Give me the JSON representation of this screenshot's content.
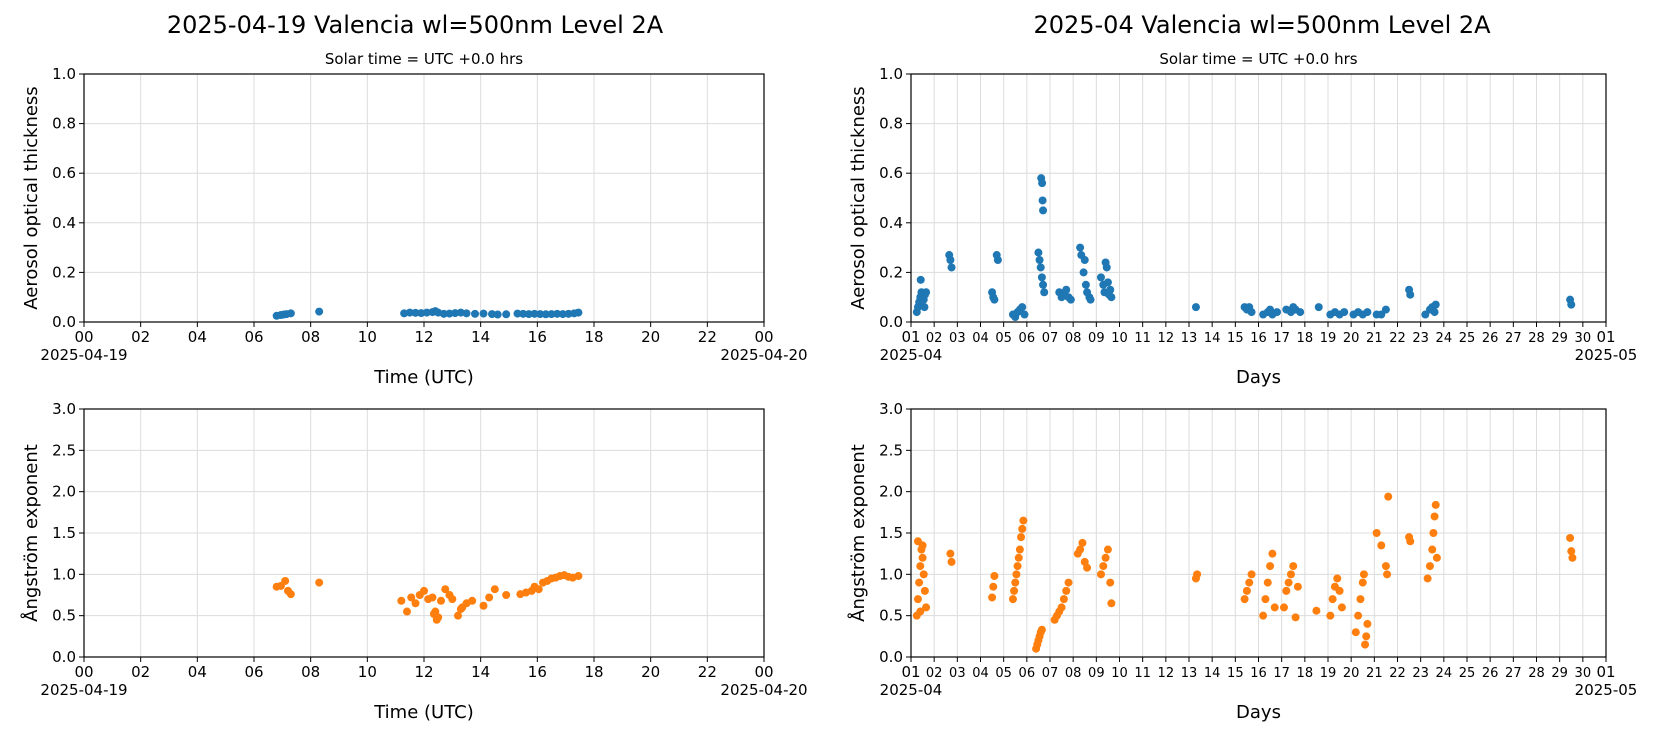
{
  "figure": {
    "left_title": "2025-04-19  Valencia  wl=500nm  Level 2A",
    "right_title": "2025-04  Valencia  wl=500nm  Level 2A",
    "subtitle": "Solar time = UTC +0.0 hrs"
  },
  "colors": {
    "aod": "#1f77b4",
    "angstrom": "#ff7f0e",
    "grid": "#dcdcdc"
  },
  "chart_data": [
    {
      "id": "daily_aod",
      "type": "scatter",
      "title": "Solar time = UTC +0.0 hrs",
      "xlabel": "Time (UTC)",
      "ylabel": "Aerosol optical thickness",
      "xlim": [
        0,
        24
      ],
      "ylim": [
        0,
        1.0
      ],
      "grid": true,
      "yticks": [
        "0.0",
        "0.2",
        "0.4",
        "0.6",
        "0.8",
        "1.0"
      ],
      "xticks": [
        "00",
        "02",
        "04",
        "06",
        "08",
        "10",
        "12",
        "14",
        "16",
        "18",
        "20",
        "22",
        "00"
      ],
      "x_start_label": "2025-04-19",
      "x_end_label": "2025-04-20",
      "series": [
        {
          "color": "#1f77b4",
          "x": [
            6.8,
            6.95,
            7.05,
            7.15,
            7.3,
            8.3,
            11.3,
            11.5,
            11.7,
            11.9,
            12.1,
            12.3,
            12.4,
            12.5,
            12.7,
            12.9,
            13.1,
            13.3,
            13.5,
            13.8,
            14.1,
            14.4,
            14.6,
            14.9,
            15.3,
            15.5,
            15.7,
            15.9,
            16.1,
            16.3,
            16.5,
            16.7,
            16.9,
            17.1,
            17.3,
            17.45
          ],
          "y": [
            0.025,
            0.028,
            0.03,
            0.032,
            0.035,
            0.042,
            0.035,
            0.038,
            0.037,
            0.036,
            0.038,
            0.04,
            0.044,
            0.038,
            0.033,
            0.034,
            0.036,
            0.038,
            0.035,
            0.033,
            0.034,
            0.032,
            0.03,
            0.031,
            0.034,
            0.033,
            0.032,
            0.033,
            0.032,
            0.031,
            0.032,
            0.033,
            0.032,
            0.033,
            0.035,
            0.038
          ]
        }
      ]
    },
    {
      "id": "monthly_aod",
      "type": "scatter",
      "title": "Solar time = UTC +0.0 hrs",
      "xlabel": "Days",
      "ylabel": "Aerosol optical thickness",
      "xlim": [
        1,
        31
      ],
      "ylim": [
        0,
        1.0
      ],
      "grid": true,
      "yticks": [
        "0.0",
        "0.2",
        "0.4",
        "0.6",
        "0.8",
        "1.0"
      ],
      "xticks": [
        "01",
        "02",
        "03",
        "04",
        "05",
        "06",
        "07",
        "08",
        "09",
        "10",
        "11",
        "12",
        "13",
        "14",
        "15",
        "16",
        "17",
        "18",
        "19",
        "20",
        "21",
        "22",
        "23",
        "24",
        "25",
        "26",
        "27",
        "28",
        "29",
        "30",
        "01"
      ],
      "x_start_label": "2025-04",
      "x_end_label": "2025-05",
      "series": [
        {
          "color": "#1f77b4",
          "x": [
            1.25,
            1.3,
            1.35,
            1.4,
            1.45,
            1.5,
            1.55,
            1.6,
            1.65,
            1.42,
            1.58,
            2.65,
            2.7,
            2.75,
            4.5,
            4.55,
            4.6,
            4.7,
            4.75,
            5.4,
            5.5,
            5.6,
            5.7,
            5.8,
            5.9,
            6.5,
            6.55,
            6.6,
            6.65,
            6.7,
            6.62,
            6.66,
            6.68,
            6.7,
            6.75,
            7.4,
            7.5,
            7.6,
            7.7,
            7.8,
            7.9,
            8.3,
            8.35,
            8.45,
            8.5,
            8.55,
            8.6,
            8.7,
            8.75,
            9.2,
            9.3,
            9.35,
            9.4,
            9.45,
            9.5,
            9.55,
            9.6,
            9.65,
            13.3,
            15.4,
            15.5,
            15.6,
            15.7,
            16.2,
            16.4,
            16.5,
            16.6,
            16.8,
            17.2,
            17.4,
            17.5,
            17.6,
            17.8,
            18.6,
            19.1,
            19.3,
            19.5,
            19.7,
            20.1,
            20.3,
            20.5,
            20.7,
            21.1,
            21.3,
            21.5,
            22.5,
            22.55,
            23.2,
            23.4,
            23.5,
            23.6,
            23.65,
            29.45,
            29.5
          ],
          "y": [
            0.04,
            0.06,
            0.08,
            0.1,
            0.12,
            0.1,
            0.09,
            0.11,
            0.12,
            0.17,
            0.06,
            0.27,
            0.25,
            0.22,
            0.12,
            0.1,
            0.09,
            0.27,
            0.25,
            0.03,
            0.02,
            0.04,
            0.05,
            0.06,
            0.03,
            0.28,
            0.25,
            0.22,
            0.18,
            0.15,
            0.58,
            0.56,
            0.49,
            0.45,
            0.12,
            0.12,
            0.1,
            0.11,
            0.13,
            0.1,
            0.09,
            0.3,
            0.27,
            0.2,
            0.25,
            0.15,
            0.12,
            0.1,
            0.09,
            0.18,
            0.15,
            0.12,
            0.24,
            0.22,
            0.16,
            0.11,
            0.13,
            0.1,
            0.06,
            0.06,
            0.05,
            0.06,
            0.04,
            0.03,
            0.04,
            0.05,
            0.03,
            0.04,
            0.05,
            0.04,
            0.06,
            0.05,
            0.04,
            0.06,
            0.03,
            0.04,
            0.03,
            0.04,
            0.03,
            0.04,
            0.03,
            0.04,
            0.03,
            0.03,
            0.05,
            0.13,
            0.11,
            0.03,
            0.05,
            0.06,
            0.04,
            0.07,
            0.09,
            0.07
          ]
        }
      ]
    },
    {
      "id": "daily_angstrom",
      "type": "scatter",
      "title": "",
      "xlabel": "Time (UTC)",
      "ylabel": "Ångström exponent",
      "xlim": [
        0,
        24
      ],
      "ylim": [
        0,
        3.0
      ],
      "grid": true,
      "yticks": [
        "0.0",
        "0.5",
        "1.0",
        "1.5",
        "2.0",
        "2.5",
        "3.0"
      ],
      "xticks": [
        "00",
        "02",
        "04",
        "06",
        "08",
        "10",
        "12",
        "14",
        "16",
        "18",
        "20",
        "22",
        "00"
      ],
      "x_start_label": "2025-04-19",
      "x_end_label": "2025-04-20",
      "series": [
        {
          "color": "#ff7f0e",
          "x": [
            6.8,
            6.95,
            7.1,
            7.2,
            7.3,
            8.3,
            11.2,
            11.4,
            11.55,
            11.7,
            11.85,
            12.0,
            12.15,
            12.3,
            12.4,
            12.5,
            12.6,
            12.75,
            12.9,
            13.0,
            13.2,
            13.35,
            13.5,
            13.7,
            14.1,
            14.3,
            14.5,
            14.9,
            15.4,
            15.6,
            15.8,
            15.9,
            16.05,
            16.2,
            16.35,
            16.5,
            16.65,
            16.8,
            16.95,
            17.1,
            17.25,
            17.45,
            12.35,
            12.45,
            13.3
          ],
          "y": [
            0.85,
            0.86,
            0.92,
            0.8,
            0.76,
            0.9,
            0.68,
            0.55,
            0.72,
            0.65,
            0.75,
            0.8,
            0.7,
            0.72,
            0.55,
            0.48,
            0.68,
            0.82,
            0.75,
            0.7,
            0.5,
            0.6,
            0.65,
            0.68,
            0.62,
            0.72,
            0.82,
            0.75,
            0.76,
            0.78,
            0.8,
            0.85,
            0.82,
            0.9,
            0.92,
            0.95,
            0.96,
            0.98,
            0.99,
            0.97,
            0.96,
            0.98,
            0.52,
            0.45,
            0.58
          ]
        }
      ]
    },
    {
      "id": "monthly_angstrom",
      "type": "scatter",
      "title": "",
      "xlabel": "Days",
      "ylabel": "Ångström exponent",
      "xlim": [
        1,
        31
      ],
      "ylim": [
        0,
        3.0
      ],
      "grid": true,
      "yticks": [
        "0.0",
        "0.5",
        "1.0",
        "1.5",
        "2.0",
        "2.5",
        "3.0"
      ],
      "xticks": [
        "01",
        "02",
        "03",
        "04",
        "05",
        "06",
        "07",
        "08",
        "09",
        "10",
        "11",
        "12",
        "13",
        "14",
        "15",
        "16",
        "17",
        "18",
        "19",
        "20",
        "21",
        "22",
        "23",
        "24",
        "25",
        "26",
        "27",
        "28",
        "29",
        "30",
        "01"
      ],
      "x_start_label": "2025-04",
      "x_end_label": "2025-05",
      "series": [
        {
          "color": "#ff7f0e",
          "x": [
            1.25,
            1.3,
            1.35,
            1.4,
            1.45,
            1.5,
            1.55,
            1.6,
            1.65,
            1.3,
            1.4,
            1.5,
            2.7,
            2.75,
            4.5,
            4.55,
            4.6,
            5.4,
            5.45,
            5.5,
            5.55,
            5.6,
            5.65,
            5.7,
            5.75,
            5.8,
            5.85,
            6.4,
            6.45,
            6.5,
            6.55,
            6.6,
            6.65,
            7.2,
            7.3,
            7.4,
            7.5,
            7.6,
            7.7,
            7.8,
            8.2,
            8.3,
            8.4,
            8.5,
            8.6,
            9.2,
            9.3,
            9.4,
            9.5,
            9.6,
            9.65,
            13.3,
            13.35,
            15.4,
            15.5,
            15.6,
            15.7,
            16.2,
            16.3,
            16.4,
            16.5,
            16.6,
            16.7,
            17.1,
            17.2,
            17.3,
            17.4,
            17.5,
            17.6,
            17.7,
            18.5,
            19.1,
            19.2,
            19.3,
            19.4,
            19.5,
            19.6,
            20.2,
            20.3,
            20.4,
            20.5,
            20.55,
            20.6,
            20.65,
            20.7,
            21.1,
            21.3,
            21.5,
            21.55,
            21.6,
            22.5,
            22.55,
            23.3,
            23.4,
            23.5,
            23.55,
            23.6,
            23.65,
            23.7,
            29.45,
            29.5,
            29.55
          ],
          "y": [
            0.5,
            0.7,
            0.9,
            1.1,
            1.3,
            1.2,
            1.0,
            0.8,
            0.6,
            1.4,
            0.55,
            1.35,
            1.25,
            1.15,
            0.72,
            0.85,
            0.98,
            0.7,
            0.8,
            0.9,
            1.0,
            1.1,
            1.2,
            1.3,
            1.45,
            1.55,
            1.65,
            0.1,
            0.15,
            0.2,
            0.25,
            0.3,
            0.33,
            0.45,
            0.5,
            0.55,
            0.6,
            0.7,
            0.8,
            0.9,
            1.25,
            1.3,
            1.38,
            1.15,
            1.08,
            1.0,
            1.1,
            1.2,
            1.3,
            0.9,
            0.65,
            0.95,
            1.0,
            0.7,
            0.8,
            0.9,
            1.0,
            0.5,
            0.7,
            0.9,
            1.1,
            1.25,
            0.6,
            0.6,
            0.8,
            0.9,
            1.0,
            1.1,
            0.48,
            0.85,
            0.56,
            0.5,
            0.7,
            0.85,
            0.95,
            0.8,
            0.6,
            0.3,
            0.5,
            0.7,
            0.9,
            1.0,
            0.15,
            0.25,
            0.4,
            1.5,
            1.35,
            1.1,
            1.0,
            1.94,
            1.45,
            1.4,
            0.95,
            1.1,
            1.3,
            1.5,
            1.7,
            1.84,
            1.2,
            1.44,
            1.28,
            1.2
          ]
        }
      ]
    }
  ]
}
